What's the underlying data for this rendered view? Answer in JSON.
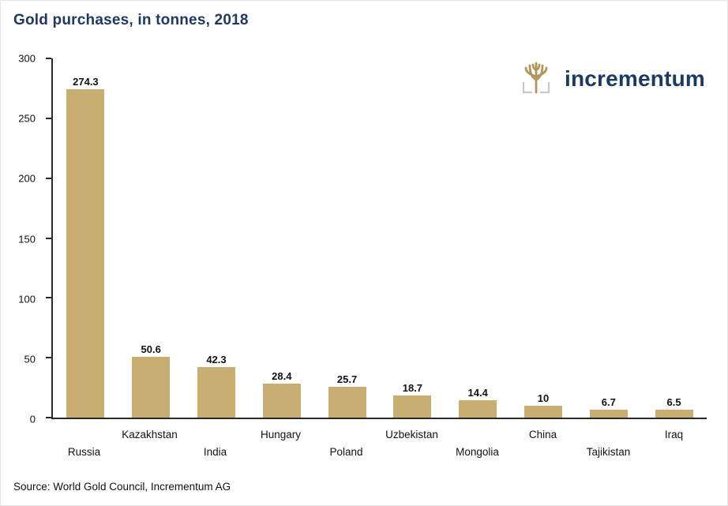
{
  "title": "Gold purchases, in tonnes, 2018",
  "source": "Source: World Gold Council, Incrementum AG",
  "logo": {
    "text": "incrementum"
  },
  "colors": {
    "bar": "#C8AE71",
    "title": "#1F3864",
    "logo_text": "#1B3A5F",
    "logo_gold": "#B3955C",
    "axis": "#2A2A2A"
  },
  "chart_data": {
    "type": "bar",
    "categories": [
      "Russia",
      "Kazakhstan",
      "India",
      "Hungary",
      "Poland",
      "Uzbekistan",
      "Mongolia",
      "China",
      "Tajikistan",
      "Iraq"
    ],
    "values": [
      274.3,
      50.6,
      42.3,
      28.4,
      25.7,
      18.7,
      14.4,
      10,
      6.7,
      6.5
    ],
    "value_labels": [
      "274.3",
      "50.6",
      "42.3",
      "28.4",
      "25.7",
      "18.7",
      "14.4",
      "10",
      "6.7",
      "6.5"
    ],
    "title": "Gold purchases, in tonnes, 2018",
    "xlabel": "",
    "ylabel": "",
    "ylim": [
      0,
      300
    ],
    "yticks": [
      0,
      50,
      100,
      150,
      200,
      250,
      300
    ],
    "grid": false,
    "legend": false,
    "bar_label_rows": "staggered"
  }
}
